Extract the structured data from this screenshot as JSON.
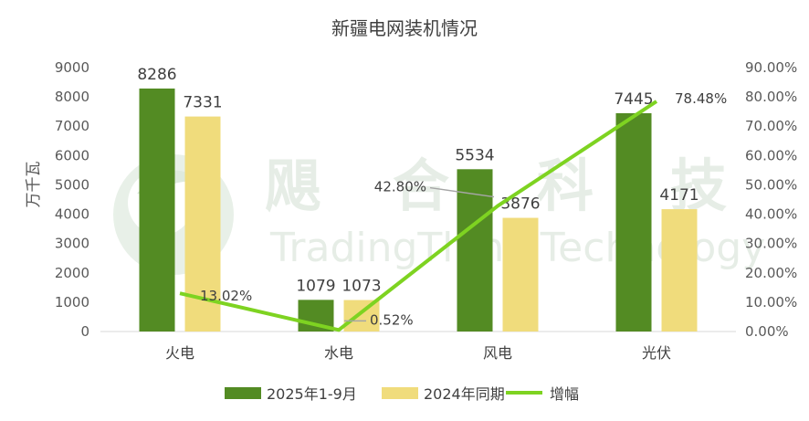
{
  "chart_data": {
    "type": "bar",
    "title": "新疆电网装机情况",
    "ylabel": "万千瓦",
    "categories": [
      "火电",
      "水电",
      "风电",
      "光伏"
    ],
    "series": [
      {
        "name": "2025年1-9月",
        "type": "bar",
        "values": [
          8286,
          1079,
          5534,
          7445
        ],
        "labels": [
          "8286",
          "1079",
          "5534",
          "7445"
        ],
        "color": "#538b23"
      },
      {
        "name": "2024年同期",
        "type": "bar",
        "values": [
          7331,
          1073,
          3876,
          4171
        ],
        "labels": [
          "7331",
          "1073",
          "3876",
          "4171"
        ],
        "color": "#f0dc7c"
      },
      {
        "name": "增幅",
        "type": "line",
        "axis": "secondary",
        "values": [
          13.02,
          0.52,
          42.8,
          78.48
        ],
        "labels": [
          "13.02%",
          "0.52%",
          "42.80%",
          "78.48%"
        ],
        "color": "#7ed321"
      }
    ],
    "ylim": [
      0,
      9000
    ],
    "y_ticks": [
      "0",
      "1000",
      "2000",
      "3000",
      "4000",
      "5000",
      "6000",
      "7000",
      "8000",
      "9000"
    ],
    "y2lim": [
      0,
      90
    ],
    "y2_ticks": [
      "0.00%",
      "10.00%",
      "20.00%",
      "30.00%",
      "40.00%",
      "50.00%",
      "60.00%",
      "70.00%",
      "80.00%",
      "90.00%"
    ],
    "grid": false,
    "legend_position": "bottom"
  },
  "watermark": {
    "chars": [
      "飓",
      "合",
      "科",
      "技"
    ],
    "text": "TradingThink Technology"
  }
}
